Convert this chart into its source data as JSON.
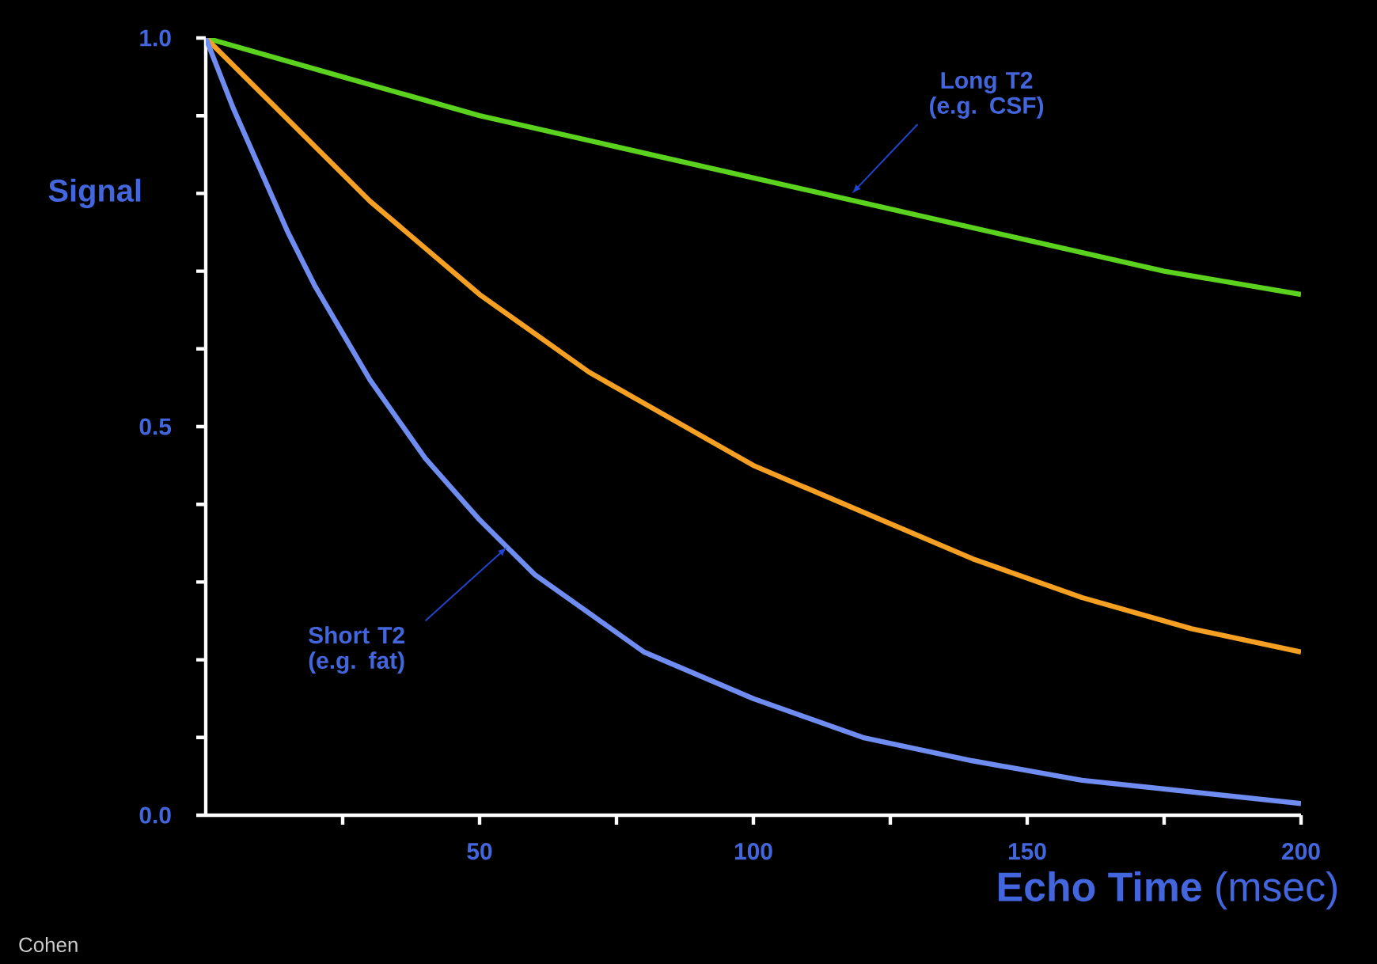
{
  "chart_data": {
    "type": "line",
    "xlabel": "**Echo Time** (msec)",
    "ylabel": "Signal",
    "xlim": [
      0,
      200
    ],
    "ylim": [
      0,
      1
    ],
    "xticks": [
      {
        "value": 25,
        "label": null
      },
      50,
      {
        "value": 75,
        "label": null
      },
      100,
      {
        "value": 125,
        "label": null
      },
      150,
      {
        "value": 175,
        "label": null
      },
      200
    ],
    "yticks": [
      {
        "value": 0,
        "label": "0.0"
      },
      {
        "value": 0.1,
        "label": null
      },
      {
        "value": 0.2,
        "label": null
      },
      {
        "value": 0.3,
        "label": null
      },
      {
        "value": 0.4,
        "label": null
      },
      {
        "value": 0.5,
        "label": "0.5"
      },
      {
        "value": 0.6,
        "label": null
      },
      {
        "value": 0.7,
        "label": null
      },
      {
        "value": 0.8,
        "label": null
      },
      {
        "value": 0.9,
        "label": null
      },
      {
        "value": 1,
        "label": "1.0"
      }
    ],
    "grid": false,
    "marker": "none",
    "line_style": "solid",
    "series": [
      {
        "color": "#5ad21e",
        "x": [
          0,
          25,
          50,
          75,
          100,
          125,
          150,
          175,
          200
        ],
        "values": [
          1.0,
          0.95,
          0.9,
          0.86,
          0.82,
          0.78,
          0.74,
          0.7,
          0.67
        ]
      },
      {
        "color": "#f5a023",
        "x": [
          0,
          10,
          20,
          30,
          40,
          50,
          60,
          70,
          80,
          90,
          100,
          120,
          140,
          160,
          180,
          200
        ],
        "values": [
          1.0,
          0.93,
          0.86,
          0.79,
          0.73,
          0.67,
          0.62,
          0.57,
          0.53,
          0.49,
          0.45,
          0.39,
          0.33,
          0.28,
          0.24,
          0.21
        ]
      },
      {
        "color": "#6f8cf0",
        "x": [
          0,
          5,
          10,
          15,
          20,
          30,
          40,
          50,
          60,
          70,
          80,
          90,
          100,
          120,
          140,
          160,
          180,
          200
        ],
        "values": [
          1.0,
          0.91,
          0.83,
          0.75,
          0.68,
          0.56,
          0.46,
          0.38,
          0.31,
          0.26,
          0.21,
          0.18,
          0.15,
          0.1,
          0.07,
          0.045,
          0.03,
          0.015
        ]
      }
    ],
    "annotations": [
      {
        "text": "Long T2 (e.g. CSF)",
        "x": 118,
        "y": 0.8
      },
      {
        "text": "Short T2 (e.g. fat)",
        "x": 55,
        "y": 0.345
      },
      "Cohen"
    ]
  }
}
